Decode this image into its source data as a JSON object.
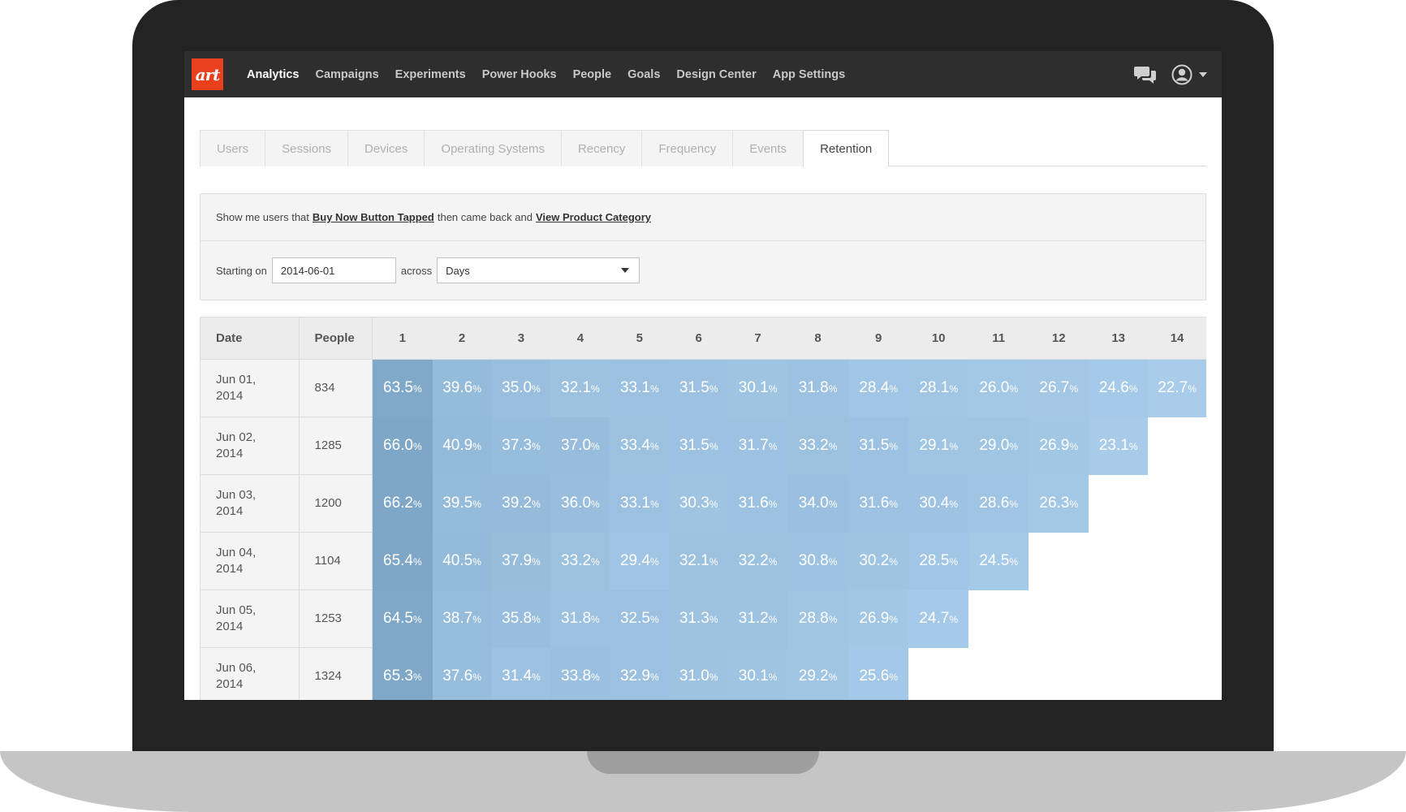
{
  "nav": {
    "logo_text": "art",
    "items": [
      "Analytics",
      "Campaigns",
      "Experiments",
      "Power Hooks",
      "People",
      "Goals",
      "Design Center",
      "App Settings"
    ],
    "active": "Analytics"
  },
  "tabs": {
    "items": [
      "Users",
      "Sessions",
      "Devices",
      "Operating Systems",
      "Recency",
      "Frequency",
      "Events",
      "Retention"
    ],
    "active": "Retention"
  },
  "query": {
    "prefix": "Show me users that",
    "first_event": "Buy Now Button Tapped",
    "middle": "then came back and",
    "second_event": "View Product Category",
    "starting_label": "Starting on",
    "start_date": "2014-06-01",
    "across_label": "across",
    "period": "Days"
  },
  "table": {
    "headers": {
      "date": "Date",
      "people": "People",
      "days": [
        "1",
        "2",
        "3",
        "4",
        "5",
        "6",
        "7",
        "8",
        "9",
        "10",
        "11",
        "12",
        "13",
        "14"
      ]
    },
    "percent_suffix": "%",
    "rows": [
      {
        "date_line1": "Jun 01,",
        "date_line2": "2014",
        "people": "834",
        "values": [
          "63.5",
          "39.6",
          "35.0",
          "32.1",
          "33.1",
          "31.5",
          "30.1",
          "31.8",
          "28.4",
          "28.1",
          "26.0",
          "26.7",
          "24.6",
          "22.7"
        ]
      },
      {
        "date_line1": "Jun 02,",
        "date_line2": "2014",
        "people": "1285",
        "values": [
          "66.0",
          "40.9",
          "37.3",
          "37.0",
          "33.4",
          "31.5",
          "31.7",
          "33.2",
          "31.5",
          "29.1",
          "29.0",
          "26.9",
          "23.1"
        ]
      },
      {
        "date_line1": "Jun 03,",
        "date_line2": "2014",
        "people": "1200",
        "values": [
          "66.2",
          "39.5",
          "39.2",
          "36.0",
          "33.1",
          "30.3",
          "31.6",
          "34.0",
          "31.6",
          "30.4",
          "28.6",
          "26.3"
        ]
      },
      {
        "date_line1": "Jun 04,",
        "date_line2": "2014",
        "people": "1104",
        "values": [
          "65.4",
          "40.5",
          "37.9",
          "33.2",
          "29.4",
          "32.1",
          "32.2",
          "30.8",
          "30.2",
          "28.5",
          "24.5"
        ]
      },
      {
        "date_line1": "Jun 05,",
        "date_line2": "2014",
        "people": "1253",
        "values": [
          "64.5",
          "38.7",
          "35.8",
          "31.8",
          "32.5",
          "31.3",
          "31.2",
          "28.8",
          "26.9",
          "24.7"
        ]
      },
      {
        "date_line1": "Jun 06,",
        "date_line2": "2014",
        "people": "1324",
        "values": [
          "65.3",
          "37.6",
          "31.4",
          "33.8",
          "32.9",
          "31.0",
          "30.1",
          "29.2",
          "25.6"
        ]
      }
    ]
  },
  "colors": {
    "nav_bg": "#2e2e2e",
    "logo_bg": "#e8401c",
    "heat_low": "#a9cdeb",
    "heat_high": "#7ea6c6"
  },
  "icons": {
    "chat": "chat-bubbles-icon",
    "user": "user-avatar-icon",
    "caret": "caret-down-icon"
  }
}
